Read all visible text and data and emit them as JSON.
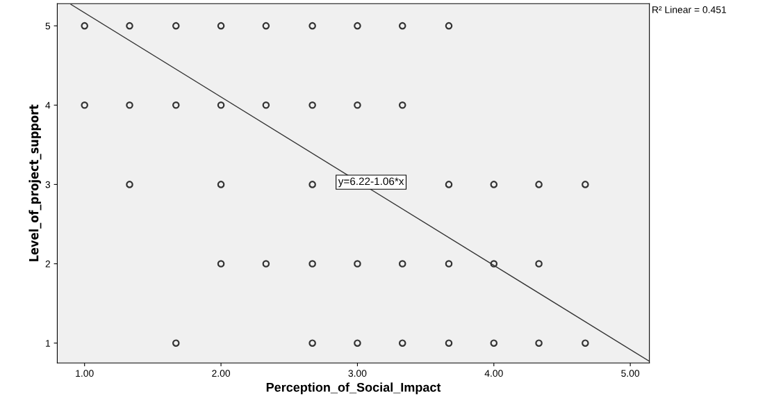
{
  "chart_data": {
    "type": "scatter",
    "xlabel": "Perception_of_Social_Impact",
    "ylabel": "Level_of_project_support",
    "xlim": [
      0.8,
      5.14
    ],
    "ylim": [
      0.75,
      5.28
    ],
    "xticks": [
      {
        "value": 1,
        "label": "1.00"
      },
      {
        "value": 2,
        "label": "2.00"
      },
      {
        "value": 3,
        "label": "3.00"
      },
      {
        "value": 4,
        "label": "4.00"
      },
      {
        "value": 5,
        "label": "5.00"
      }
    ],
    "yticks": [
      1,
      2,
      3,
      4,
      5
    ],
    "grid": false,
    "series": [
      {
        "color": "#333333",
        "marker": "circle",
        "x": [
          1,
          1.33,
          1.67,
          2,
          2.33,
          2.67,
          3,
          3.33,
          3.67,
          1,
          1.33,
          1.67,
          2,
          2.33,
          2.67,
          3,
          3.33,
          1.33,
          2,
          2.67,
          3.67,
          4,
          4.33,
          4.67,
          2,
          2.33,
          2.67,
          3,
          3.33,
          3.67,
          4,
          4.33,
          1.67,
          2.67,
          3,
          3.33,
          3.67,
          4,
          4.33,
          4.67
        ],
        "values": [
          5,
          5,
          5,
          5,
          5,
          5,
          5,
          5,
          5,
          4,
          4,
          4,
          4,
          4,
          4,
          4,
          4,
          3,
          3,
          3,
          3,
          3,
          3,
          3,
          2,
          2,
          2,
          2,
          2,
          2,
          2,
          2,
          1,
          1,
          1,
          1,
          1,
          1,
          1,
          1
        ]
      },
      {
        "type": "line",
        "color": "#333333",
        "marker": "none",
        "x": [
          0.9,
          5.14
        ],
        "values": [
          5.27,
          0.77
        ]
      }
    ],
    "annotations": [
      "y=6.22-1.06*x",
      "R² Linear = 0.451"
    ]
  }
}
